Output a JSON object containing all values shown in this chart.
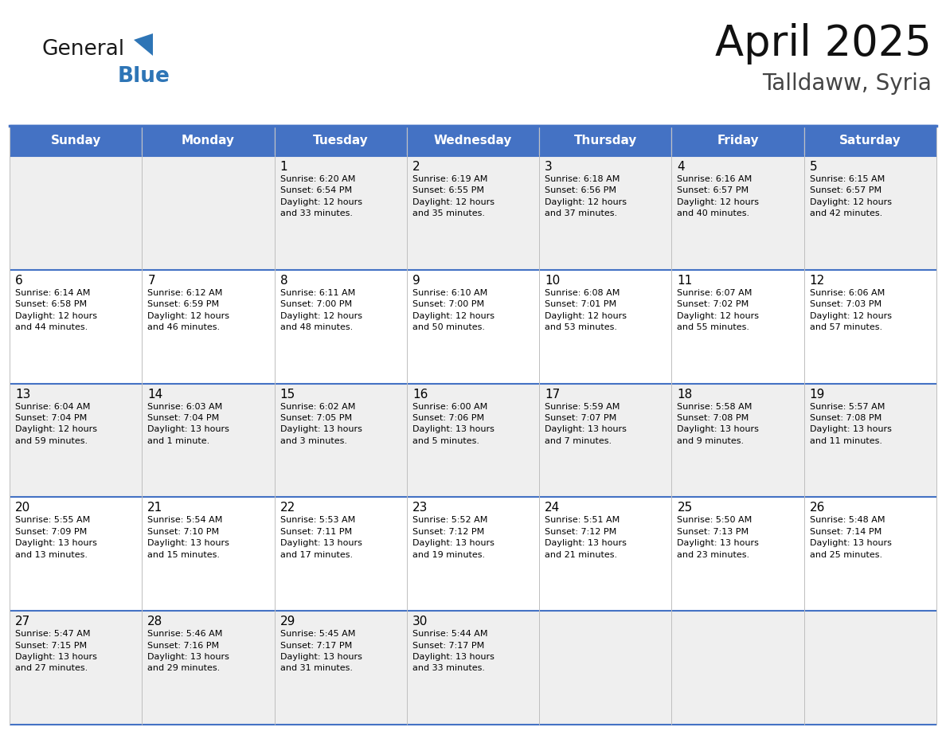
{
  "title": "April 2025",
  "subtitle": "Talldaww, Syria",
  "days_of_week": [
    "Sunday",
    "Monday",
    "Tuesday",
    "Wednesday",
    "Thursday",
    "Friday",
    "Saturday"
  ],
  "header_bg": "#4472C4",
  "header_text": "#FFFFFF",
  "cell_bg_light": "#F2F2F2",
  "cell_bg_white": "#FFFFFF",
  "border_color": "#4472C4",
  "row_line_color": "#4472C4",
  "day_num_color": "#000000",
  "text_color": "#000000",
  "grid_col_color": "#C0C0C0",
  "logo_general_color": "#1A1A1A",
  "logo_blue_color": "#2E75B6",
  "weeks": [
    [
      {
        "day": null,
        "info": ""
      },
      {
        "day": null,
        "info": ""
      },
      {
        "day": 1,
        "info": "Sunrise: 6:20 AM\nSunset: 6:54 PM\nDaylight: 12 hours\nand 33 minutes."
      },
      {
        "day": 2,
        "info": "Sunrise: 6:19 AM\nSunset: 6:55 PM\nDaylight: 12 hours\nand 35 minutes."
      },
      {
        "day": 3,
        "info": "Sunrise: 6:18 AM\nSunset: 6:56 PM\nDaylight: 12 hours\nand 37 minutes."
      },
      {
        "day": 4,
        "info": "Sunrise: 6:16 AM\nSunset: 6:57 PM\nDaylight: 12 hours\nand 40 minutes."
      },
      {
        "day": 5,
        "info": "Sunrise: 6:15 AM\nSunset: 6:57 PM\nDaylight: 12 hours\nand 42 minutes."
      }
    ],
    [
      {
        "day": 6,
        "info": "Sunrise: 6:14 AM\nSunset: 6:58 PM\nDaylight: 12 hours\nand 44 minutes."
      },
      {
        "day": 7,
        "info": "Sunrise: 6:12 AM\nSunset: 6:59 PM\nDaylight: 12 hours\nand 46 minutes."
      },
      {
        "day": 8,
        "info": "Sunrise: 6:11 AM\nSunset: 7:00 PM\nDaylight: 12 hours\nand 48 minutes."
      },
      {
        "day": 9,
        "info": "Sunrise: 6:10 AM\nSunset: 7:00 PM\nDaylight: 12 hours\nand 50 minutes."
      },
      {
        "day": 10,
        "info": "Sunrise: 6:08 AM\nSunset: 7:01 PM\nDaylight: 12 hours\nand 53 minutes."
      },
      {
        "day": 11,
        "info": "Sunrise: 6:07 AM\nSunset: 7:02 PM\nDaylight: 12 hours\nand 55 minutes."
      },
      {
        "day": 12,
        "info": "Sunrise: 6:06 AM\nSunset: 7:03 PM\nDaylight: 12 hours\nand 57 minutes."
      }
    ],
    [
      {
        "day": 13,
        "info": "Sunrise: 6:04 AM\nSunset: 7:04 PM\nDaylight: 12 hours\nand 59 minutes."
      },
      {
        "day": 14,
        "info": "Sunrise: 6:03 AM\nSunset: 7:04 PM\nDaylight: 13 hours\nand 1 minute."
      },
      {
        "day": 15,
        "info": "Sunrise: 6:02 AM\nSunset: 7:05 PM\nDaylight: 13 hours\nand 3 minutes."
      },
      {
        "day": 16,
        "info": "Sunrise: 6:00 AM\nSunset: 7:06 PM\nDaylight: 13 hours\nand 5 minutes."
      },
      {
        "day": 17,
        "info": "Sunrise: 5:59 AM\nSunset: 7:07 PM\nDaylight: 13 hours\nand 7 minutes."
      },
      {
        "day": 18,
        "info": "Sunrise: 5:58 AM\nSunset: 7:08 PM\nDaylight: 13 hours\nand 9 minutes."
      },
      {
        "day": 19,
        "info": "Sunrise: 5:57 AM\nSunset: 7:08 PM\nDaylight: 13 hours\nand 11 minutes."
      }
    ],
    [
      {
        "day": 20,
        "info": "Sunrise: 5:55 AM\nSunset: 7:09 PM\nDaylight: 13 hours\nand 13 minutes."
      },
      {
        "day": 21,
        "info": "Sunrise: 5:54 AM\nSunset: 7:10 PM\nDaylight: 13 hours\nand 15 minutes."
      },
      {
        "day": 22,
        "info": "Sunrise: 5:53 AM\nSunset: 7:11 PM\nDaylight: 13 hours\nand 17 minutes."
      },
      {
        "day": 23,
        "info": "Sunrise: 5:52 AM\nSunset: 7:12 PM\nDaylight: 13 hours\nand 19 minutes."
      },
      {
        "day": 24,
        "info": "Sunrise: 5:51 AM\nSunset: 7:12 PM\nDaylight: 13 hours\nand 21 minutes."
      },
      {
        "day": 25,
        "info": "Sunrise: 5:50 AM\nSunset: 7:13 PM\nDaylight: 13 hours\nand 23 minutes."
      },
      {
        "day": 26,
        "info": "Sunrise: 5:48 AM\nSunset: 7:14 PM\nDaylight: 13 hours\nand 25 minutes."
      }
    ],
    [
      {
        "day": 27,
        "info": "Sunrise: 5:47 AM\nSunset: 7:15 PM\nDaylight: 13 hours\nand 27 minutes."
      },
      {
        "day": 28,
        "info": "Sunrise: 5:46 AM\nSunset: 7:16 PM\nDaylight: 13 hours\nand 29 minutes."
      },
      {
        "day": 29,
        "info": "Sunrise: 5:45 AM\nSunset: 7:17 PM\nDaylight: 13 hours\nand 31 minutes."
      },
      {
        "day": 30,
        "info": "Sunrise: 5:44 AM\nSunset: 7:17 PM\nDaylight: 13 hours\nand 33 minutes."
      },
      {
        "day": null,
        "info": ""
      },
      {
        "day": null,
        "info": ""
      },
      {
        "day": null,
        "info": ""
      }
    ]
  ],
  "row_bg_colors": [
    "#EFEFEF",
    "#FFFFFF",
    "#EFEFEF",
    "#FFFFFF",
    "#EFEFEF"
  ]
}
